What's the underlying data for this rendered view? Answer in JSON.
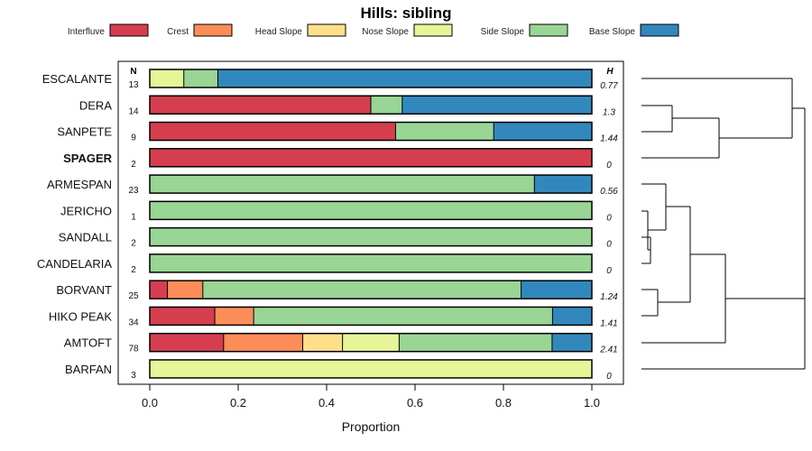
{
  "chart_data": {
    "type": "bar",
    "orientation": "horizontal",
    "stacked": true,
    "title": "Hills: sibling",
    "xlabel": "Proportion",
    "ylabel": "",
    "xlim": [
      0,
      1
    ],
    "x_ticks": [
      "0.0",
      "0.2",
      "0.4",
      "0.6",
      "0.8",
      "1.0"
    ],
    "n_header": "N",
    "h_header": "H",
    "legend": [
      {
        "name": "Interfluve",
        "color": "#d53e4f"
      },
      {
        "name": "Crest",
        "color": "#fc8d59"
      },
      {
        "name": "Head Slope",
        "color": "#fee08b"
      },
      {
        "name": "Nose Slope",
        "color": "#e6f598"
      },
      {
        "name": "Side Slope",
        "color": "#99d594"
      },
      {
        "name": "Base Slope",
        "color": "#3288bd"
      }
    ],
    "categories": [
      "ESCALANTE",
      "DERA",
      "SANPETE",
      "SPAGER",
      "ARMESPAN",
      "JERICHO",
      "SANDALL",
      "CANDELARIA",
      "BORVANT",
      "HIKO PEAK",
      "AMTOFT",
      "BARFAN"
    ],
    "highlight": "SPAGER",
    "n": [
      "13",
      "14",
      "9",
      "2",
      "23",
      "1",
      "2",
      "2",
      "25",
      "34",
      "78",
      "3"
    ],
    "h": [
      "0.77",
      "1.3",
      "1.44",
      "0",
      "0.56",
      "0",
      "0",
      "0",
      "1.24",
      "1.41",
      "2.41",
      "0"
    ],
    "series": [
      {
        "name": "Interfluve",
        "values": [
          0,
          0.5,
          0.556,
          1.0,
          0,
          0,
          0,
          0,
          0.04,
          0.147,
          0.167,
          0
        ]
      },
      {
        "name": "Crest",
        "values": [
          0,
          0,
          0,
          0,
          0,
          0,
          0,
          0,
          0.08,
          0.088,
          0.179,
          0
        ]
      },
      {
        "name": "Head Slope",
        "values": [
          0,
          0,
          0,
          0,
          0,
          0,
          0,
          0,
          0,
          0,
          0.09,
          0
        ]
      },
      {
        "name": "Nose Slope",
        "values": [
          0.077,
          0,
          0,
          0,
          0,
          0,
          0,
          0,
          0,
          0,
          0.128,
          1.0
        ]
      },
      {
        "name": "Side Slope",
        "values": [
          0.077,
          0.071,
          0.222,
          0,
          0.87,
          1.0,
          1.0,
          1.0,
          0.72,
          0.676,
          0.346,
          0
        ]
      },
      {
        "name": "Base Slope",
        "values": [
          0.846,
          0.429,
          0.222,
          0,
          0.13,
          0,
          0,
          0,
          0.16,
          0.088,
          0.09,
          0
        ]
      }
    ]
  }
}
